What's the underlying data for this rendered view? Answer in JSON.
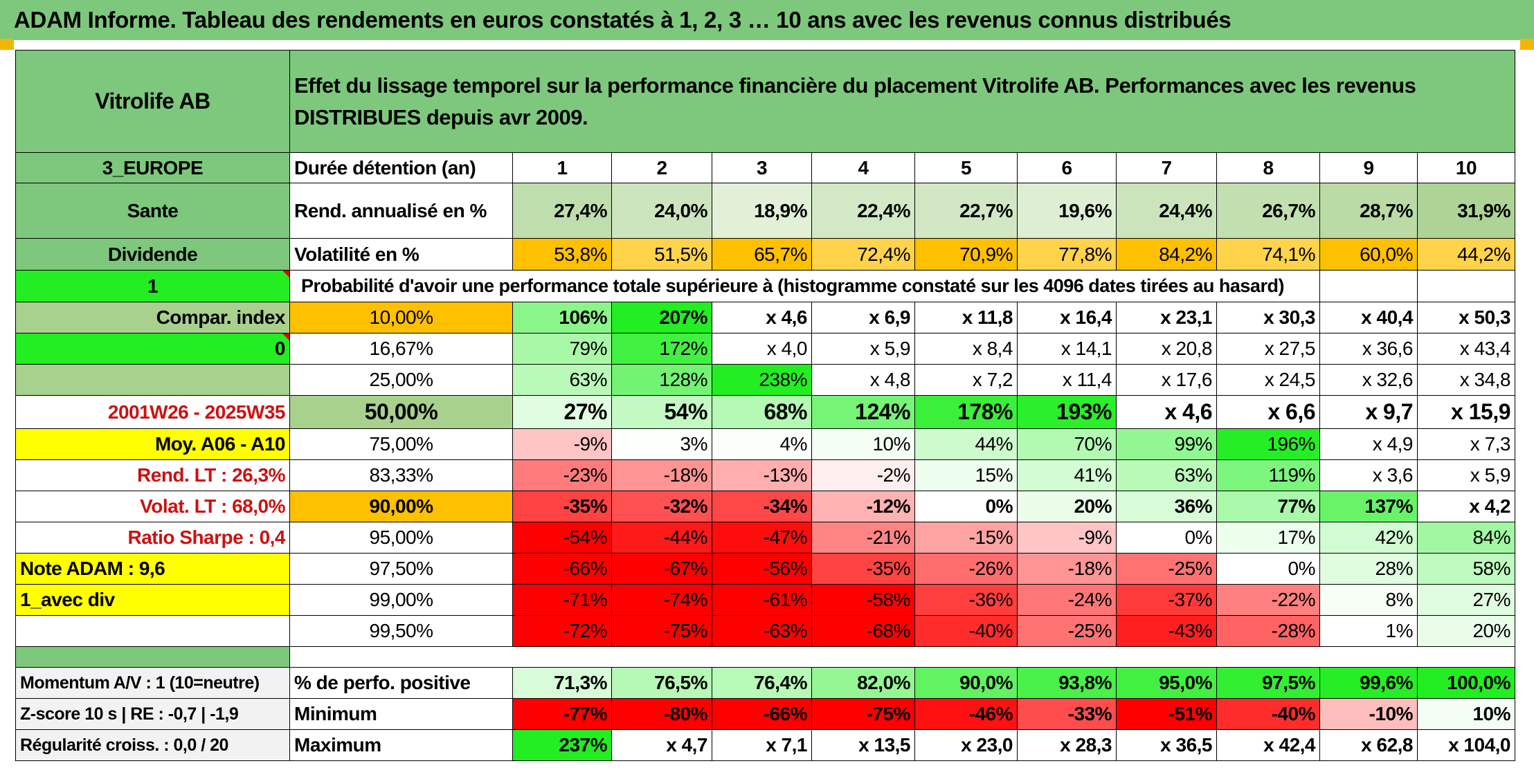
{
  "title": "ADAM Informe. Tableau des rendements en euros constatés à 1, 2, 3 … 10 ans avec les revenus connus distribués",
  "header": {
    "name": "Vitrolife AB",
    "description": "Effet du lissage temporel sur la performance financière du placement Vitrolife AB. Performances avec les revenus DISTRIBUES depuis avr 2009."
  },
  "side": {
    "region": "3_EUROPE",
    "sector": "Sante",
    "dividend": "Dividende",
    "val1": "1",
    "compar": "Compar. index",
    "val0": "0",
    "period": "2001W26 - 2025W35",
    "moy": "Moy. A06 - A10",
    "rend_lt": "Rend. LT :   26,3%",
    "volat_lt": "Volat. LT :   68,0%",
    "sharpe": "Ratio Sharpe :    0,4",
    "note": "Note ADAM : 9,6",
    "avec_div": "1_avec div"
  },
  "rows": {
    "duree": {
      "label": "Durée détention (an)",
      "values": [
        "1",
        "2",
        "3",
        "4",
        "5",
        "6",
        "7",
        "8",
        "9",
        "10"
      ]
    },
    "rend": {
      "label": "Rend. annualisé en %",
      "values": [
        "27,4%",
        "24,0%",
        "18,9%",
        "22,4%",
        "22,7%",
        "19,6%",
        "24,4%",
        "26,7%",
        "28,7%",
        "31,9%"
      ]
    },
    "vol": {
      "label": "Volatilité en %",
      "values": [
        "53,8%",
        "51,5%",
        "65,7%",
        "72,4%",
        "70,9%",
        "77,8%",
        "84,2%",
        "74,1%",
        "60,0%",
        "44,2%"
      ]
    },
    "prob_caption": "Probabilité d'avoir une performance totale supérieure à (histogramme constaté sur les 4096 dates tirées au hasard)"
  },
  "prob_rows": [
    {
      "pct": "10,00%",
      "values": [
        "106%",
        "207%",
        "x 4,6",
        "x 6,9",
        "x 11,8",
        "x 16,4",
        "x 23,1",
        "x 30,3",
        "x 40,4",
        "x 50,3"
      ]
    },
    {
      "pct": "16,67%",
      "values": [
        "79%",
        "172%",
        "x 4,0",
        "x 5,9",
        "x 8,4",
        "x 14,1",
        "x 20,8",
        "x 27,5",
        "x 36,6",
        "x 43,4"
      ]
    },
    {
      "pct": "25,00%",
      "values": [
        "63%",
        "128%",
        "238%",
        "x 4,8",
        "x 7,2",
        "x 11,4",
        "x 17,6",
        "x 24,5",
        "x 32,6",
        "x 34,8"
      ]
    },
    {
      "pct": "50,00%",
      "values": [
        "27%",
        "54%",
        "68%",
        "124%",
        "178%",
        "193%",
        "x 4,6",
        "x 6,6",
        "x 9,7",
        "x 15,9"
      ]
    },
    {
      "pct": "75,00%",
      "values": [
        "-9%",
        "3%",
        "4%",
        "10%",
        "44%",
        "70%",
        "99%",
        "196%",
        "x 4,9",
        "x 7,3"
      ]
    },
    {
      "pct": "83,33%",
      "values": [
        "-23%",
        "-18%",
        "-13%",
        "-2%",
        "15%",
        "41%",
        "63%",
        "119%",
        "x 3,6",
        "x 5,9"
      ]
    },
    {
      "pct": "90,00%",
      "values": [
        "-35%",
        "-32%",
        "-34%",
        "-12%",
        "0%",
        "20%",
        "36%",
        "77%",
        "137%",
        "x 4,2"
      ]
    },
    {
      "pct": "95,00%",
      "values": [
        "-54%",
        "-44%",
        "-47%",
        "-21%",
        "-15%",
        "-9%",
        "0%",
        "17%",
        "42%",
        "84%"
      ]
    },
    {
      "pct": "97,50%",
      "values": [
        "-66%",
        "-67%",
        "-56%",
        "-35%",
        "-26%",
        "-18%",
        "-25%",
        "0%",
        "28%",
        "58%"
      ]
    },
    {
      "pct": "99,00%",
      "values": [
        "-71%",
        "-74%",
        "-61%",
        "-58%",
        "-36%",
        "-24%",
        "-37%",
        "-22%",
        "8%",
        "27%"
      ]
    },
    {
      "pct": "99,50%",
      "values": [
        "-72%",
        "-75%",
        "-63%",
        "-68%",
        "-40%",
        "-25%",
        "-43%",
        "-28%",
        "1%",
        "20%"
      ]
    }
  ],
  "bottom_rows": [
    {
      "side": "Momentum A/V : 1 (10=neutre)",
      "label": "% de perfo. positive",
      "values": [
        "71,3%",
        "76,5%",
        "76,4%",
        "82,0%",
        "90,0%",
        "93,8%",
        "95,0%",
        "97,5%",
        "99,6%",
        "100,0%"
      ]
    },
    {
      "side": "Z-score 10 s | RE : -0,7 | -1,9",
      "label": "Minimum",
      "values": [
        "-77%",
        "-80%",
        "-66%",
        "-75%",
        "-46%",
        "-33%",
        "-51%",
        "-40%",
        "-10%",
        "10%"
      ]
    },
    {
      "side": "Régularité croiss. : 0,0 / 20",
      "label": "Maximum",
      "values": [
        "237%",
        "x 4,7",
        "x 7,1",
        "x 13,5",
        "x 23,0",
        "x 28,3",
        "x 36,5",
        "x 42,4",
        "x 62,8",
        "x 104,0"
      ]
    }
  ],
  "colors": {
    "header_green": "#7dc87d",
    "lime": "#22ee22",
    "yellow": "#ffff00",
    "orange": "#ffc000",
    "red": "#ff0000"
  }
}
